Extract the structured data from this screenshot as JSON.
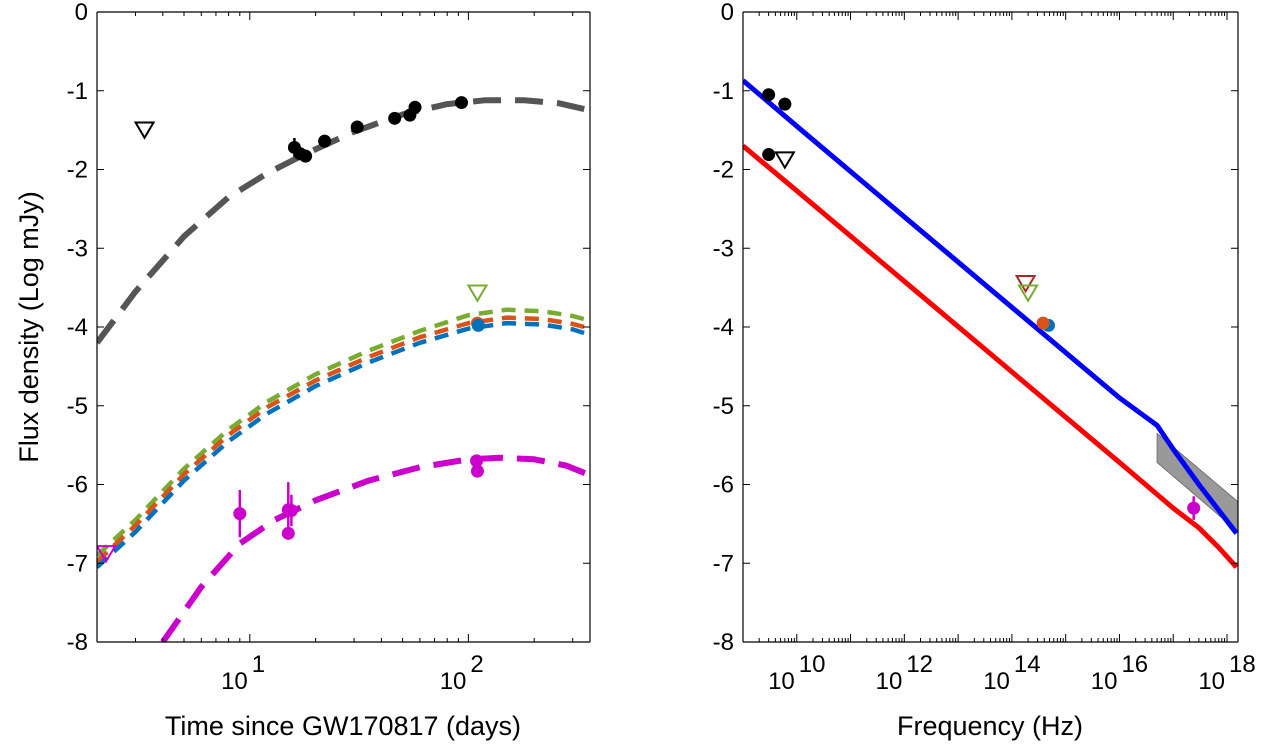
{
  "chart_data": [
    {
      "type": "line",
      "xscale": "log",
      "xlabel": "Time since GW170817 (days)",
      "ylabel": "Flux density (Log mJy)",
      "xlim": [
        2,
        360
      ],
      "ylim": [
        -8,
        0
      ],
      "grid": false,
      "yticks": [
        "0",
        "-1",
        "-2",
        "-3",
        "-4",
        "-5",
        "-6",
        "-7",
        "-8"
      ],
      "xticks": [
        {
          "base": "10",
          "exp": "1",
          "value": 10
        },
        {
          "base": "10",
          "exp": "2",
          "value": 100
        }
      ],
      "model_curves": [
        {
          "color": "#555555",
          "dash": "long",
          "x": [
            2,
            3,
            5,
            8,
            12,
            18,
            30,
            50,
            80,
            120,
            180,
            260,
            360
          ],
          "y": [
            -4.2,
            -3.55,
            -2.85,
            -2.35,
            -2.05,
            -1.8,
            -1.52,
            -1.3,
            -1.17,
            -1.12,
            -1.12,
            -1.16,
            -1.25
          ]
        },
        {
          "color": "#77ac30",
          "dash": "short",
          "x": [
            2,
            3,
            5,
            8,
            12,
            20,
            35,
            60,
            100,
            150,
            220,
            300,
            360
          ],
          "y": [
            -6.9,
            -6.45,
            -5.8,
            -5.3,
            -4.95,
            -4.6,
            -4.3,
            -4.05,
            -3.85,
            -3.78,
            -3.8,
            -3.86,
            -3.92
          ]
        },
        {
          "color": "#d95319",
          "dash": "short",
          "x": [
            2,
            3,
            5,
            8,
            12,
            20,
            35,
            60,
            100,
            150,
            220,
            300,
            360
          ],
          "y": [
            -6.98,
            -6.52,
            -5.87,
            -5.37,
            -5.02,
            -4.68,
            -4.38,
            -4.13,
            -3.95,
            -3.88,
            -3.9,
            -3.96,
            -4.02
          ]
        },
        {
          "color": "#0072bd",
          "dash": "short",
          "x": [
            2,
            3,
            5,
            8,
            12,
            20,
            35,
            60,
            100,
            150,
            220,
            300,
            360
          ],
          "y": [
            -7.05,
            -6.6,
            -5.95,
            -5.45,
            -5.1,
            -4.75,
            -4.45,
            -4.2,
            -4.02,
            -3.95,
            -3.97,
            -4.03,
            -4.1
          ]
        },
        {
          "color": "#cc00cc",
          "dash": "long",
          "x": [
            4,
            6,
            9,
            13,
            20,
            35,
            60,
            100,
            140,
            200,
            280,
            360
          ],
          "y": [
            -8.0,
            -7.3,
            -6.75,
            -6.45,
            -6.2,
            -5.95,
            -5.78,
            -5.68,
            -5.66,
            -5.68,
            -5.76,
            -5.88
          ]
        }
      ],
      "points": [
        {
          "group": "radio",
          "color": "#000000",
          "marker": "filled-circle",
          "x": [
            16,
            17,
            18,
            22,
            31,
            46,
            54,
            57,
            93
          ],
          "y": [
            -1.72,
            -1.8,
            -1.83,
            -1.64,
            -1.46,
            -1.35,
            -1.31,
            -1.21,
            -1.15
          ],
          "yerr": [
            0.12,
            0.05,
            0.08,
            0.05,
            0.04,
            0.04,
            0.04,
            0.04,
            0.03
          ]
        },
        {
          "group": "radio-limit",
          "color": "#000000",
          "marker": "open-triangle-down",
          "x": [
            3.3
          ],
          "y": [
            -1.5
          ]
        },
        {
          "group": "optical",
          "color": "#d95319",
          "marker": "filled-circle",
          "x": [
            110
          ],
          "y": [
            -3.95
          ]
        },
        {
          "group": "optical",
          "color": "#0072bd",
          "marker": "filled-circle",
          "x": [
            111
          ],
          "y": [
            -3.98
          ]
        },
        {
          "group": "optical-limit",
          "color": "#77ac30",
          "marker": "open-triangle-down",
          "x": [
            110
          ],
          "y": [
            -3.57
          ]
        },
        {
          "group": "x-ray",
          "color": "#cc00cc",
          "marker": "filled-circle",
          "x": [
            9,
            15,
            15.5,
            15,
            109,
            110
          ],
          "y": [
            -6.37,
            -6.32,
            -6.33,
            -6.62,
            -5.7,
            -5.83
          ],
          "yerr": [
            0.3,
            0.35,
            0.2,
            0.05,
            0.08,
            0.06
          ]
        },
        {
          "group": "x-ray-limit",
          "color": "#cc00cc",
          "marker": "open-triangle-down",
          "x": [
            2.2
          ],
          "y": [
            -6.88
          ]
        }
      ]
    },
    {
      "type": "line",
      "xscale": "log",
      "xlabel": "Frequency (Hz)",
      "ylabel": "",
      "xlim": [
        1000000000.0,
        1.6e+18
      ],
      "ylim": [
        -8,
        0
      ],
      "grid": false,
      "yticks": [
        "0",
        "-1",
        "-2",
        "-3",
        "-4",
        "-5",
        "-6",
        "-7",
        "-8"
      ],
      "xticks": [
        {
          "base": "10",
          "exp": "10",
          "value": 10000000000.0
        },
        {
          "base": "10",
          "exp": "12",
          "value": 1000000000000.0
        },
        {
          "base": "10",
          "exp": "14",
          "value": 100000000000000.0
        },
        {
          "base": "10",
          "exp": "16",
          "value": 1e+16
        },
        {
          "base": "10",
          "exp": "18",
          "value": 1e+18
        }
      ],
      "model_curves": [
        {
          "color": "#0000ff",
          "dash": "solid",
          "x": [
            1000000000.0,
            10000000000.0,
            1000000000000.0,
            100000000000000.0,
            1e+16,
            5e+16,
            1e+17,
            3e+17,
            1.5e+18
          ],
          "y": [
            -0.87,
            -1.45,
            -2.6,
            -3.75,
            -4.9,
            -5.25,
            -5.55,
            -6.0,
            -6.62
          ]
        },
        {
          "color": "#ff0000",
          "dash": "solid",
          "x": [
            1000000000.0,
            10000000000.0,
            1000000000000.0,
            100000000000000.0,
            1e+16,
            1e+17,
            3e+17,
            7e+17,
            1.5e+18
          ],
          "y": [
            -1.7,
            -2.27,
            -3.42,
            -4.57,
            -5.72,
            -6.3,
            -6.55,
            -6.8,
            -7.05
          ]
        }
      ],
      "points": [
        {
          "group": "radio",
          "color": "#000000",
          "marker": "filled-circle",
          "x": [
            3000000000.0,
            6000000000.0,
            3000000000.0
          ],
          "y": [
            -1.05,
            -1.17,
            -1.81
          ],
          "yerr": [
            0.03,
            0.03,
            0.08
          ]
        },
        {
          "group": "radio-limit",
          "color": "#000000",
          "marker": "open-triangle-down",
          "x": [
            6000000000.0
          ],
          "y": [
            -1.88
          ]
        },
        {
          "group": "optical",
          "color": "#0072bd",
          "marker": "filled-circle",
          "x": [
            480000000000000.0
          ],
          "y": [
            -3.98
          ]
        },
        {
          "group": "optical",
          "color": "#d95319",
          "marker": "filled-circle",
          "x": [
            380000000000000.0
          ],
          "y": [
            -3.95
          ]
        },
        {
          "group": "optical-limit",
          "color": "#a52a2a",
          "marker": "open-triangle-down",
          "x": [
            180000000000000.0
          ],
          "y": [
            -3.45
          ]
        },
        {
          "group": "optical-limit",
          "color": "#77ac30",
          "marker": "open-triangle-down",
          "x": [
            200000000000000.0
          ],
          "y": [
            -3.57
          ]
        },
        {
          "group": "x-ray",
          "color": "#cc00cc",
          "marker": "filled-circle",
          "x": [
            2.4e+17
          ],
          "y": [
            -6.3
          ],
          "yerr": [
            0.15
          ]
        }
      ],
      "band": {
        "color": "#808080",
        "x": [
          5e+16,
          1.6e+18
        ],
        "y_upper": [
          -5.35,
          -6.22
        ],
        "y_lower": [
          -5.72,
          -6.6
        ]
      }
    }
  ]
}
